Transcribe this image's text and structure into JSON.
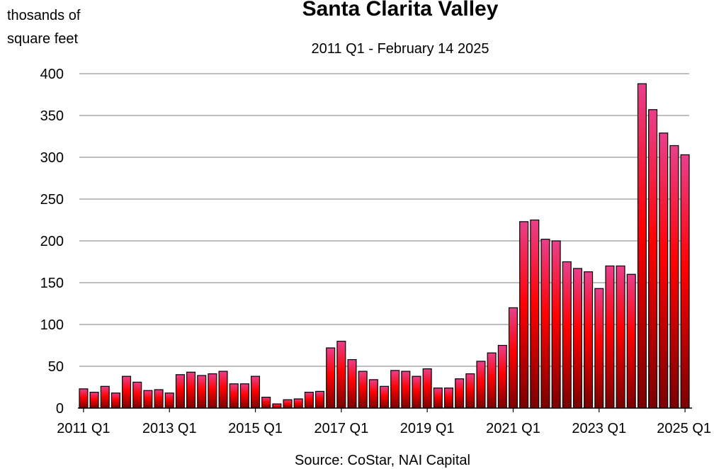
{
  "chart_data": {
    "type": "bar",
    "title": "Santa Clarita Valley",
    "subtitle": "2011 Q1 - February 14 2025",
    "ylabel_line1": "thosands of",
    "ylabel_line2": "square feet",
    "source": "Source: CoStar, NAI Capital",
    "ylim": [
      0,
      400
    ],
    "yticks": [
      0,
      50,
      100,
      150,
      200,
      250,
      300,
      350,
      400
    ],
    "xtick_labels": [
      "2011 Q1",
      "2013 Q1",
      "2015 Q1",
      "2017 Q1",
      "2019 Q1",
      "2021 Q1",
      "2023 Q1",
      "2025 Q1"
    ],
    "grid": true,
    "colors": {
      "bar_top": "#e8408c",
      "bar_bottom": "#7a0000",
      "bar_mid": "#ff0000",
      "outline": "#000000",
      "grid": "#999999"
    },
    "categories": [
      "2011 Q1",
      "2011 Q2",
      "2011 Q3",
      "2011 Q4",
      "2012 Q1",
      "2012 Q2",
      "2012 Q3",
      "2012 Q4",
      "2013 Q1",
      "2013 Q2",
      "2013 Q3",
      "2013 Q4",
      "2014 Q1",
      "2014 Q2",
      "2014 Q3",
      "2014 Q4",
      "2015 Q1",
      "2015 Q2",
      "2015 Q3",
      "2015 Q4",
      "2016 Q1",
      "2016 Q2",
      "2016 Q3",
      "2016 Q4",
      "2017 Q1",
      "2017 Q2",
      "2017 Q3",
      "2017 Q4",
      "2018 Q1",
      "2018 Q2",
      "2018 Q3",
      "2018 Q4",
      "2019 Q1",
      "2019 Q2",
      "2019 Q3",
      "2019 Q4",
      "2020 Q1",
      "2020 Q2",
      "2020 Q3",
      "2020 Q4",
      "2021 Q1",
      "2021 Q2",
      "2021 Q3",
      "2021 Q4",
      "2022 Q1",
      "2022 Q2",
      "2022 Q3",
      "2022 Q4",
      "2023 Q1",
      "2023 Q2",
      "2023 Q3",
      "2023 Q4",
      "2024 Q1",
      "2024 Q2",
      "2024 Q3",
      "2024 Q4",
      "2025 Q1"
    ],
    "values": [
      23,
      19,
      26,
      18,
      38,
      31,
      21,
      22,
      18,
      40,
      43,
      39,
      41,
      44,
      29,
      29,
      38,
      13,
      5,
      10,
      11,
      19,
      20,
      72,
      80,
      58,
      44,
      34,
      26,
      45,
      44,
      38,
      47,
      24,
      24,
      35,
      41,
      56,
      66,
      75,
      120,
      223,
      225,
      202,
      200,
      175,
      167,
      163,
      143,
      170,
      170,
      160,
      388,
      357,
      329,
      314,
      303
    ]
  }
}
